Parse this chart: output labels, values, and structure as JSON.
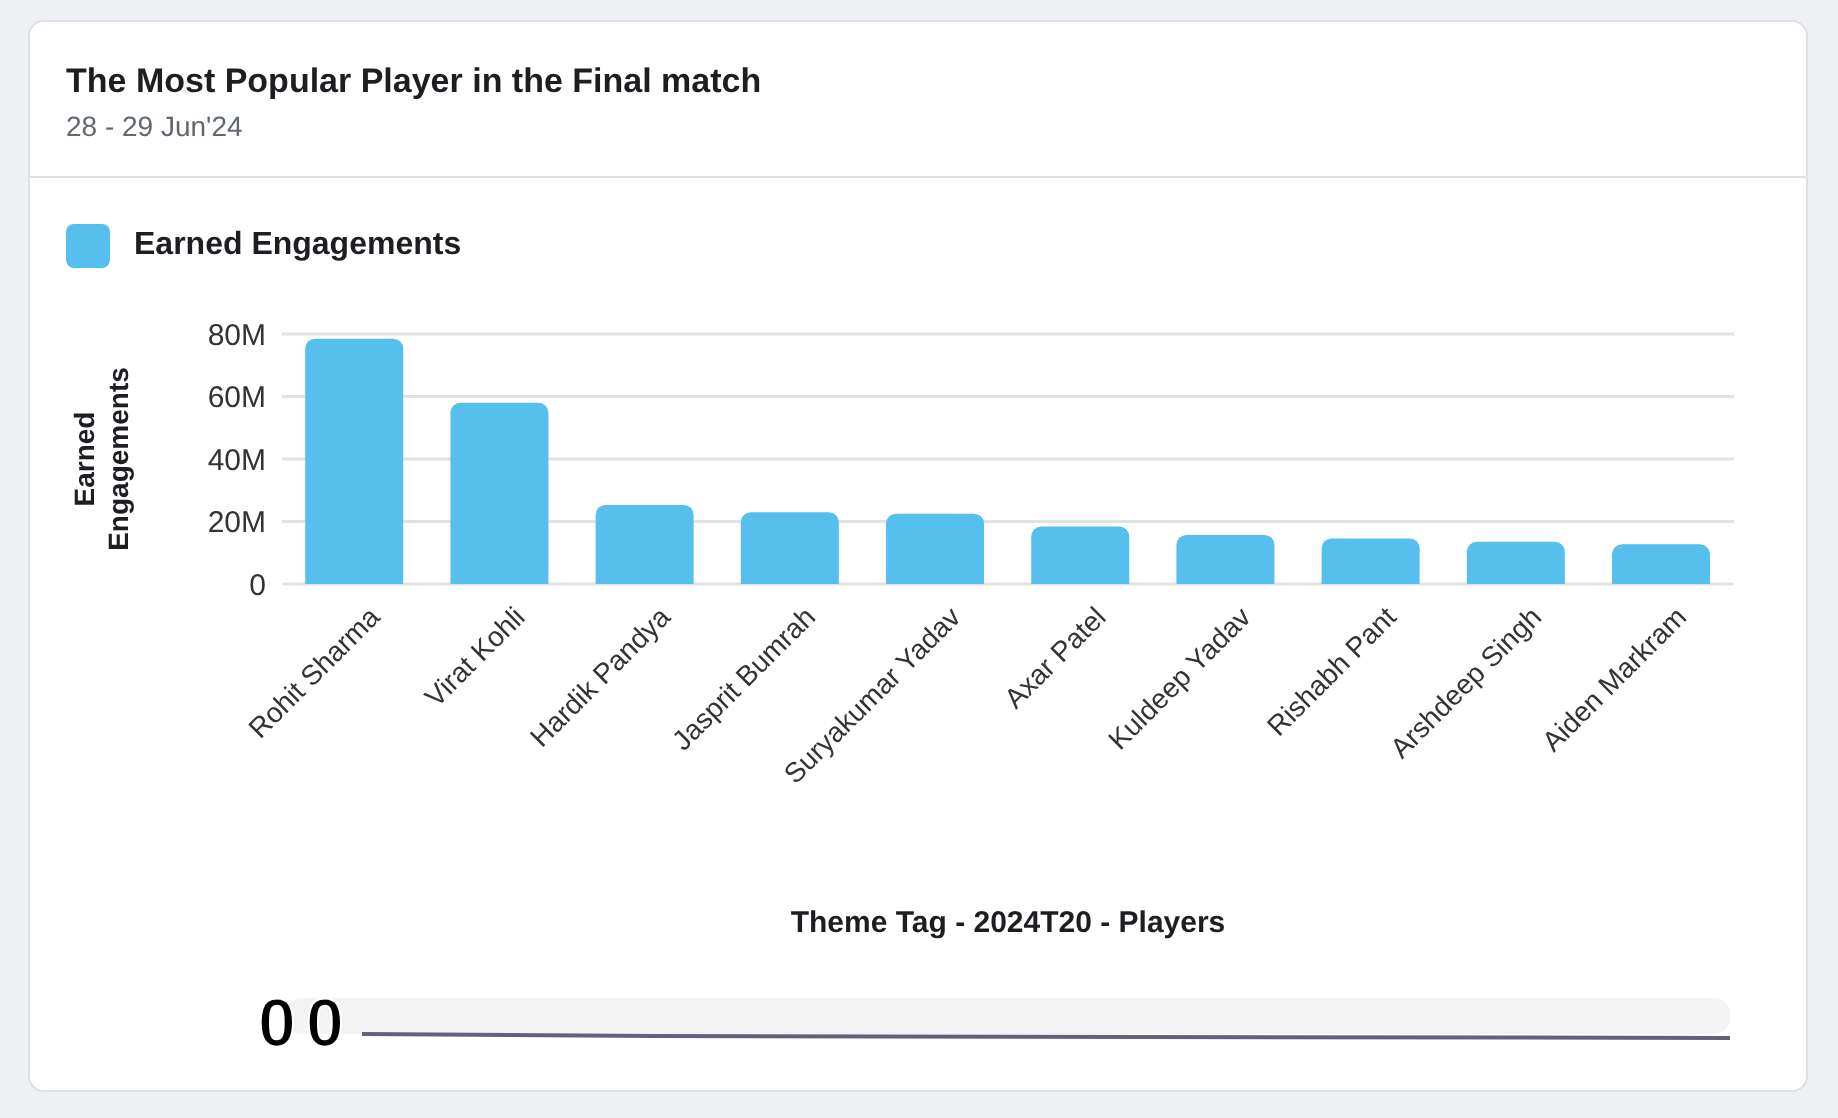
{
  "chart_data": {
    "type": "bar",
    "title": "The Most Popular Player in the Final match",
    "subtitle": "28 - 29 Jun'24",
    "xlabel": "Theme Tag - 2024T20 - Players",
    "ylabel": "Earned Engagements",
    "categories": [
      "Rohit Sharma",
      "Virat Kohli",
      "Hardik Pandya",
      "Jasprit Bumrah",
      "Suryakumar Yadav",
      "Axar Patel",
      "Kuldeep Yadav",
      "Rishabh Pant",
      "Arshdeep Singh",
      "Aiden Markram"
    ],
    "series": [
      {
        "name": "Earned Engagements",
        "color": "#56bfee",
        "values": [
          78.5,
          58,
          25.3,
          23,
          22.5,
          18.4,
          15.7,
          14.6,
          13.5,
          12.7
        ]
      }
    ],
    "ylim": [
      0,
      80
    ],
    "yticks": [
      {
        "value": 0,
        "label": "0"
      },
      {
        "value": 20,
        "label": "20M"
      },
      {
        "value": 40,
        "label": "40M"
      },
      {
        "value": 60,
        "label": "60M"
      },
      {
        "value": 80,
        "label": "80M"
      }
    ],
    "grid": "y",
    "legend": "top left",
    "annotations": [
      "0",
      "0"
    ]
  }
}
